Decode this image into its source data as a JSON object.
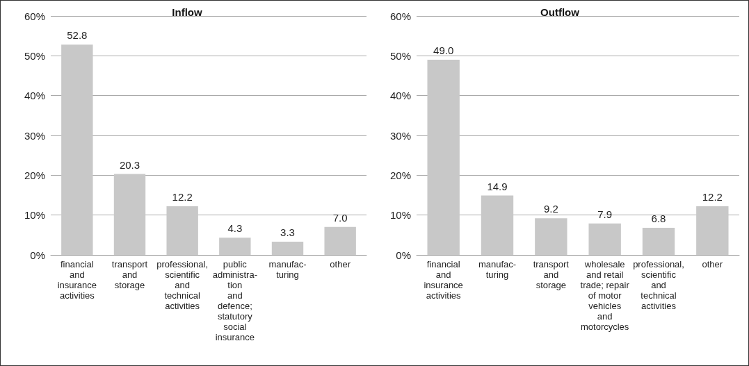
{
  "chart_data": [
    {
      "type": "bar",
      "title": "Inflow",
      "categories": [
        "financial\nand\ninsurance\nactivities",
        "transport\nand\nstorage",
        "professional,\nscientific\nand\ntechnical\nactivities",
        "public\nadministra-\ntion\nand\ndefence;\nstatutory\nsocial\ninsurance",
        "manufac-\nturing",
        "other"
      ],
      "values": [
        52.8,
        20.3,
        12.2,
        4.3,
        3.3,
        7.0
      ],
      "value_labels": [
        "52.8",
        "20.3",
        "12.2",
        "4.3",
        "3.3",
        "7.0"
      ],
      "color": "#c8c8c8",
      "ylim": [
        0,
        60
      ],
      "yticks": [
        {
          "value": 0,
          "label": "0%"
        },
        {
          "value": 10,
          "label": "10%"
        },
        {
          "value": 20,
          "label": "20%"
        },
        {
          "value": 30,
          "label": "30%"
        },
        {
          "value": 40,
          "label": "40%"
        },
        {
          "value": 50,
          "label": "50%"
        },
        {
          "value": 60,
          "label": "60%"
        }
      ],
      "grid": "y"
    },
    {
      "type": "bar",
      "title": "Outflow",
      "categories": [
        "financial\nand\ninsurance\nactivities",
        "manufac-\nturing",
        "transport\nand\nstorage",
        "wholesale\nand retail\ntrade; repair\nof motor\nvehicles\nand\nmotorcycles",
        "professional,\nscientific\nand\ntechnical\nactivities",
        "other"
      ],
      "values": [
        49.0,
        14.9,
        9.2,
        7.9,
        6.8,
        12.2
      ],
      "value_labels": [
        "49.0",
        "14.9",
        "9.2",
        "7.9",
        "6.8",
        "12.2"
      ],
      "color": "#c8c8c8",
      "ylim": [
        0,
        60
      ],
      "yticks": [
        {
          "value": 0,
          "label": "0%"
        },
        {
          "value": 10,
          "label": "10%"
        },
        {
          "value": 20,
          "label": "20%"
        },
        {
          "value": 30,
          "label": "30%"
        },
        {
          "value": 40,
          "label": "40%"
        },
        {
          "value": 50,
          "label": "50%"
        },
        {
          "value": 60,
          "label": "60%"
        }
      ],
      "grid": "y"
    }
  ]
}
